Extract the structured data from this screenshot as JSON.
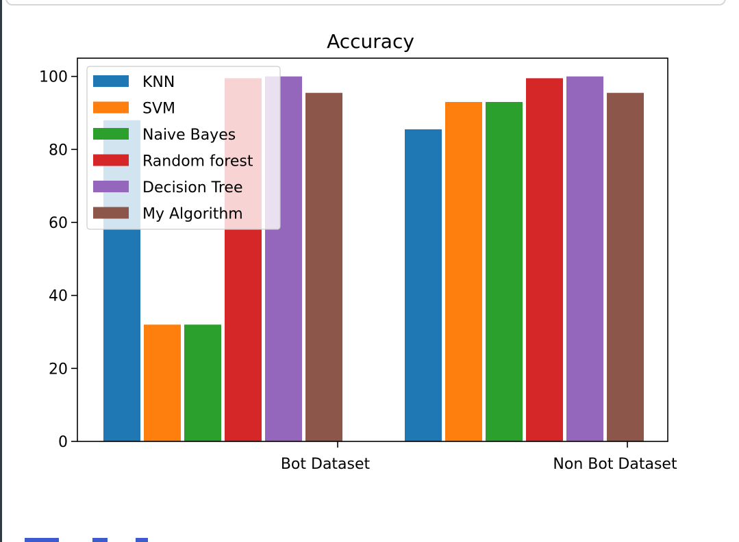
{
  "chart_data": {
    "type": "bar",
    "title": "Accuracy",
    "xlabel": "",
    "ylabel": "",
    "categories": [
      "Bot Dataset",
      "Non Bot Dataset"
    ],
    "ylim": [
      0,
      105
    ],
    "yticks": [
      "0",
      "20",
      "40",
      "60",
      "80",
      "100"
    ],
    "grid": false,
    "legend_position": "upper-left",
    "series": [
      {
        "name": "KNN",
        "color": "#1f77b4",
        "values": [
          88,
          85.5
        ]
      },
      {
        "name": "SVM",
        "color": "#ff7f0e",
        "values": [
          32,
          93
        ]
      },
      {
        "name": "Naive Bayes",
        "color": "#2ca02c",
        "values": [
          32,
          93
        ]
      },
      {
        "name": "Random forest",
        "color": "#d62728",
        "values": [
          99.5,
          99.5
        ]
      },
      {
        "name": "Decision Tree",
        "color": "#9467bd",
        "values": [
          100,
          100
        ]
      },
      {
        "name": "My Algorithm",
        "color": "#8c564b",
        "values": [
          95.5,
          95.5
        ]
      }
    ]
  }
}
